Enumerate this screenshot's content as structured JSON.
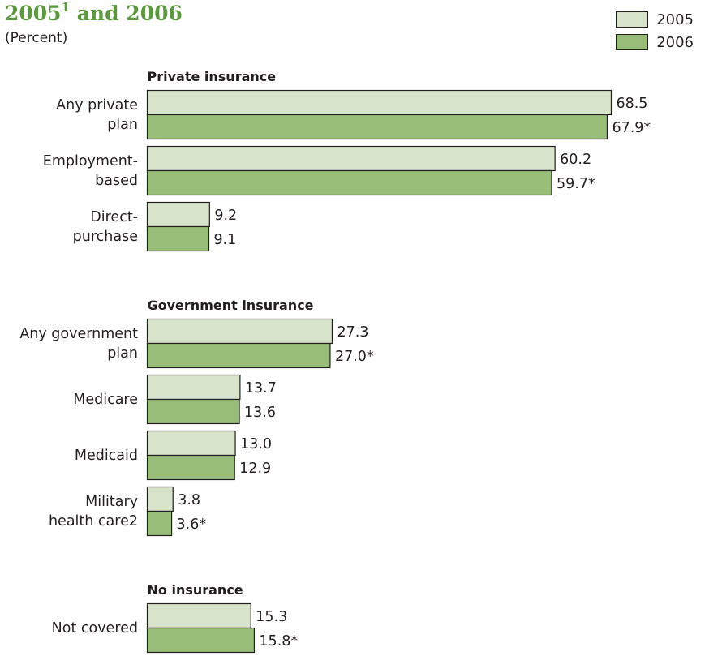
{
  "title_main": "2005",
  "title_sup": "1",
  "title_rest": " and 2006",
  "subtitle": "(Percent)",
  "colors": {
    "2005": "#d8e3cb",
    "2006": "#97bd78",
    "title": "#5a9a3c"
  },
  "chart_data": {
    "type": "bar",
    "orientation": "horizontal",
    "series_names": [
      "2005",
      "2006"
    ],
    "groups": [
      {
        "title": "Private insurance",
        "categories": [
          {
            "label": [
              "Any private",
              "plan"
            ],
            "values": [
              68.5,
              67.9
            ],
            "labels": [
              "68.5",
              "67.9*"
            ]
          },
          {
            "label": [
              "Employment-",
              "based"
            ],
            "values": [
              60.2,
              59.7
            ],
            "labels": [
              "60.2",
              "59.7*"
            ]
          },
          {
            "label": [
              "Direct-",
              "purchase"
            ],
            "values": [
              9.2,
              9.1
            ],
            "labels": [
              "9.2",
              "9.1"
            ]
          }
        ]
      },
      {
        "title": "Government insurance",
        "categories": [
          {
            "label": [
              "Any government",
              "plan"
            ],
            "values": [
              27.3,
              27.0
            ],
            "labels": [
              "27.3",
              "27.0*"
            ]
          },
          {
            "label": [
              "Medicare"
            ],
            "values": [
              13.7,
              13.6
            ],
            "labels": [
              "13.7",
              "13.6"
            ]
          },
          {
            "label": [
              "Medicaid"
            ],
            "values": [
              13.0,
              12.9
            ],
            "labels": [
              "13.0",
              "12.9"
            ]
          },
          {
            "label": [
              "Military",
              "health care2"
            ],
            "values": [
              3.8,
              3.6
            ],
            "labels": [
              "3.8",
              "3.6*"
            ]
          }
        ]
      },
      {
        "title": "No insurance",
        "categories": [
          {
            "label": [
              "Not covered"
            ],
            "values": [
              15.3,
              15.8
            ],
            "labels": [
              "15.3",
              "15.8*"
            ]
          }
        ]
      }
    ]
  }
}
